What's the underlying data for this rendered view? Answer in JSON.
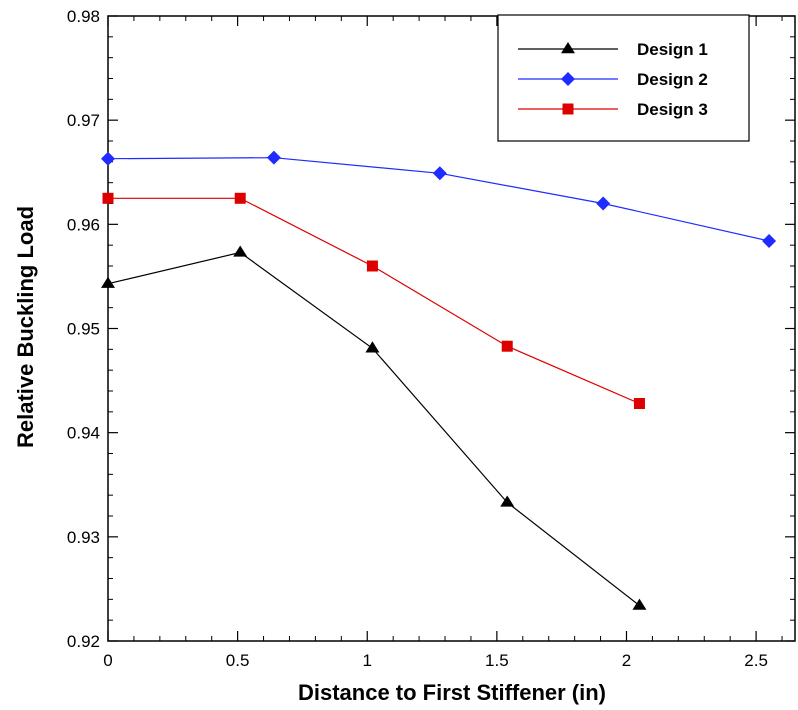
{
  "chart_data": {
    "type": "line",
    "xlabel": "Distance to First Stiffener (in)",
    "ylabel": "Relative Buckling Load",
    "xlim": [
      0,
      2.65
    ],
    "ylim": [
      0.92,
      0.98
    ],
    "xticks": [
      0,
      0.5,
      1,
      1.5,
      2,
      2.5
    ],
    "xtick_labels": [
      "0",
      "0.5",
      "1",
      "1.5",
      "2",
      "2.5"
    ],
    "yticks": [
      0.92,
      0.93,
      0.94,
      0.95,
      0.96,
      0.97,
      0.98
    ],
    "ytick_labels": [
      "0.92",
      "0.93",
      "0.94",
      "0.95",
      "0.96",
      "0.97",
      "0.98"
    ],
    "grid": false,
    "legend_position": "top-right",
    "series": [
      {
        "name": "Design 1",
        "color": "#000000",
        "marker": "triangle",
        "x": [
          0,
          0.51,
          1.02,
          1.54,
          2.05
        ],
        "y": [
          0.9543,
          0.9573,
          0.9481,
          0.9333,
          0.9234
        ]
      },
      {
        "name": "Design 2",
        "color": "#1f2bff",
        "marker": "diamond",
        "x": [
          0,
          0.64,
          1.28,
          1.91,
          2.55
        ],
        "y": [
          0.9663,
          0.9664,
          0.9649,
          0.962,
          0.9584
        ]
      },
      {
        "name": "Design 3",
        "color": "#dd0000",
        "marker": "square",
        "x": [
          0,
          0.51,
          1.02,
          1.54,
          2.05
        ],
        "y": [
          0.9625,
          0.9625,
          0.956,
          0.9483,
          0.9428
        ]
      }
    ]
  }
}
